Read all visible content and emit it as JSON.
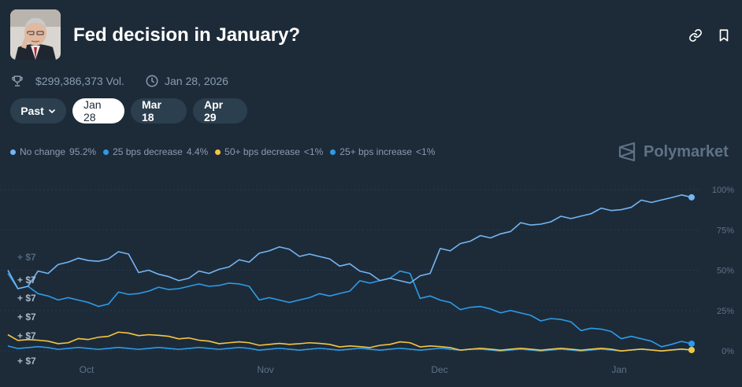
{
  "header": {
    "title": "Fed decision in January?",
    "volume": "$299,386,373 Vol.",
    "date": "Jan 28, 2026"
  },
  "tabs": [
    {
      "label": "Past",
      "active": false,
      "has_dropdown": true
    },
    {
      "label": "Jan 28",
      "active": true
    },
    {
      "label": "Mar 18",
      "active": false
    },
    {
      "label": "Apr 29",
      "active": false
    }
  ],
  "legend": [
    {
      "name": "No change",
      "value": "95.2%",
      "color": "#74b5f2"
    },
    {
      "name": "25 bps decrease",
      "value": "4.4%",
      "color": "#2e9be6"
    },
    {
      "name": "50+ bps decrease",
      "value": "<1%",
      "color": "#f5c542"
    },
    {
      "name": "25+ bps increase",
      "value": "<1%",
      "color": "#2e9be6"
    }
  ],
  "brand": "Polymarket",
  "activity_labels": [
    "+ $7",
    "+ $7",
    "+ $7",
    "+ $7",
    "+ $7",
    "+ $7"
  ],
  "icons": {
    "link": "link-icon",
    "bookmark": "bookmark-icon",
    "volume": "trophy-icon",
    "date": "clock-icon",
    "brand": "polymarket-logo-icon"
  },
  "chart_data": {
    "type": "line",
    "x_ticks": [
      "Oct",
      "Nov",
      "Dec",
      "Jan"
    ],
    "y_ticks": [
      "100%",
      "75%",
      "50%",
      "25%",
      "0%"
    ],
    "ylim": [
      0,
      100
    ],
    "grid": true,
    "x": [
      "Sep 10",
      "Sep 14",
      "Sep 18",
      "Sep 22",
      "Sep 26",
      "Sep 30",
      "Oct 4",
      "Oct 8",
      "Oct 12",
      "Oct 16",
      "Oct 20",
      "Oct 24",
      "Oct 28",
      "Nov 1",
      "Nov 5",
      "Nov 9",
      "Nov 13",
      "Nov 17",
      "Nov 21",
      "Nov 25",
      "Nov 29",
      "Dec 3",
      "Dec 7",
      "Dec 11",
      "Dec 15",
      "Dec 19",
      "Dec 23",
      "Dec 27",
      "Dec 31",
      "Jan 4",
      "Jan 8",
      "Jan 12",
      "Jan 16",
      "Jan 20",
      "Jan 24"
    ],
    "series": [
      {
        "name": "No change",
        "color": "#74b5f2",
        "values": [
          50,
          40,
          48,
          55,
          56,
          57,
          60,
          50,
          46,
          45,
          48,
          52,
          55,
          62,
          63,
          60,
          57,
          54,
          48,
          45,
          42,
          48,
          62,
          68,
          70,
          74,
          78,
          80,
          82,
          85,
          87,
          89,
          92,
          95,
          95.2
        ]
      },
      {
        "name": "25 bps decrease",
        "color": "#2e9be6",
        "values": [
          48,
          40,
          34,
          33,
          30,
          29,
          35,
          37,
          38,
          40,
          40,
          42,
          40,
          33,
          30,
          33,
          34,
          37,
          42,
          45,
          48,
          34,
          30,
          27,
          26,
          25,
          22,
          20,
          18,
          14,
          12,
          9,
          6,
          4,
          4.4
        ]
      },
      {
        "name": "50+ bps decrease",
        "color": "#f5c542",
        "values": [
          10,
          7,
          6,
          5,
          7,
          9,
          11,
          10,
          9,
          8,
          6,
          5,
          5,
          4,
          4,
          5,
          4,
          3,
          2,
          4,
          5,
          3,
          2,
          1,
          1,
          1,
          1,
          1,
          1,
          1,
          1,
          0.5,
          0.5,
          0.5,
          0.5
        ]
      },
      {
        "name": "25+ bps increase",
        "color": "#2e9be6",
        "values": [
          3,
          2,
          2,
          1.5,
          1.5,
          1.5,
          1.5,
          1.5,
          1.5,
          1.5,
          1.5,
          1.5,
          1.5,
          1,
          1,
          1,
          1,
          1,
          1,
          1,
          1,
          1,
          1,
          1,
          0.5,
          0.5,
          0.5,
          0.5,
          0.5,
          0.5,
          0.5,
          0.5,
          0.5,
          0.5,
          0.5
        ]
      }
    ]
  }
}
